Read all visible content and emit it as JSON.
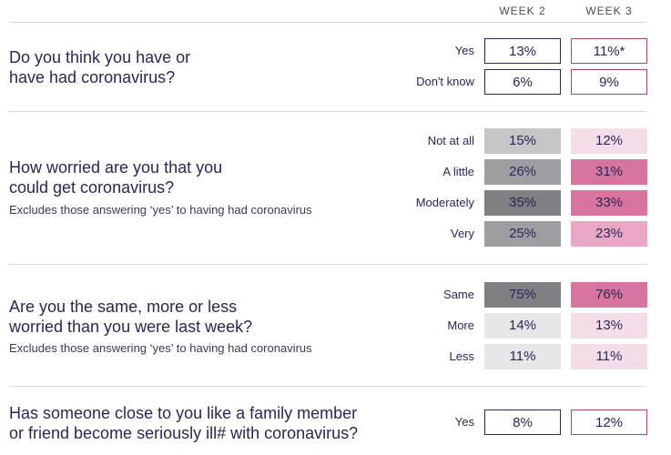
{
  "columns": [
    "WEEK 2",
    "WEEK 3"
  ],
  "colors": {
    "week2_outline": "#2a2757",
    "week3_outline": "#b0466f",
    "grey_light": "#e6e6e8",
    "grey_mid": "#c6c6c9",
    "grey_dark": "#9e9ea2",
    "grey_darker": "#7f7f84",
    "pink_light": "#f4dde8",
    "pink_mid": "#e9a7c4",
    "pink_strong": "#db86ac",
    "pink_dark": "#d7749f"
  },
  "questions": [
    {
      "lines": [
        "Do you think you have or",
        "have had coronavirus?"
      ],
      "note": "",
      "rows": [
        {
          "label": "Yes",
          "week2": "13%",
          "week3": "11%*",
          "style": "outline"
        },
        {
          "label": "Don't know",
          "week2": "6%",
          "week3": "9%",
          "style": "outline"
        }
      ]
    },
    {
      "lines": [
        "How worried are you that you",
        "could get coronavirus?"
      ],
      "note": "Excludes those answering ‘yes’ to having had coronavirus",
      "rows": [
        {
          "label": "Not at all",
          "week2": "15%",
          "week3": "12%",
          "style": "fill",
          "c2": "grey_mid",
          "c3": "pink_light"
        },
        {
          "label": "A little",
          "week2": "26%",
          "week3": "31%",
          "style": "fill",
          "c2": "grey_dark",
          "c3": "pink_dark"
        },
        {
          "label": "Moderately",
          "week2": "35%",
          "week3": "33%",
          "style": "fill",
          "c2": "grey_darker",
          "c3": "pink_dark"
        },
        {
          "label": "Very",
          "week2": "25%",
          "week3": "23%",
          "style": "fill",
          "c2": "grey_dark",
          "c3": "pink_mid"
        }
      ]
    },
    {
      "lines": [
        "Are you the same, more or less",
        "worried than you were last week?"
      ],
      "note": "Excludes those answering ‘yes’ to having had coronavirus",
      "rows": [
        {
          "label": "Same",
          "week2": "75%",
          "week3": "76%",
          "style": "fill",
          "c2": "grey_darker",
          "c3": "pink_dark"
        },
        {
          "label": "More",
          "week2": "14%",
          "week3": "13%",
          "style": "fill",
          "c2": "grey_light",
          "c3": "pink_light"
        },
        {
          "label": "Less",
          "week2": "11%",
          "week3": "11%",
          "style": "fill",
          "c2": "grey_light",
          "c3": "pink_light"
        }
      ]
    },
    {
      "lines": [
        "Has someone close to you like a family member",
        "or friend become seriously ill# with coronavirus?"
      ],
      "note": "",
      "rows": [
        {
          "label": "Yes",
          "week2": "8%",
          "week3": "12%",
          "style": "outline"
        }
      ]
    }
  ],
  "chart_data": {
    "type": "table",
    "columns": [
      "WEEK 2",
      "WEEK 3"
    ],
    "rows": [
      {
        "question": "Do you think you have or have had coronavirus?",
        "answer": "Yes",
        "week2": 13,
        "week3": 11,
        "week3_note": "*"
      },
      {
        "question": "Do you think you have or have had coronavirus?",
        "answer": "Don't know",
        "week2": 6,
        "week3": 9
      },
      {
        "question": "How worried are you that you could get coronavirus?",
        "answer": "Not at all",
        "week2": 15,
        "week3": 12
      },
      {
        "question": "How worried are you that you could get coronavirus?",
        "answer": "A little",
        "week2": 26,
        "week3": 31
      },
      {
        "question": "How worried are you that you could get coronavirus?",
        "answer": "Moderately",
        "week2": 35,
        "week3": 33
      },
      {
        "question": "How worried are you that you could get coronavirus?",
        "answer": "Very",
        "week2": 25,
        "week3": 23
      },
      {
        "question": "Are you the same, more or less worried than you were last week?",
        "answer": "Same",
        "week2": 75,
        "week3": 76
      },
      {
        "question": "Are you the same, more or less worried than you were last week?",
        "answer": "More",
        "week2": 14,
        "week3": 13
      },
      {
        "question": "Are you the same, more or less worried than you were last week?",
        "answer": "Less",
        "week2": 11,
        "week3": 11
      },
      {
        "question": "Has someone close to you like a family member or friend become seriously ill# with coronavirus?",
        "answer": "Yes",
        "week2": 8,
        "week3": 12
      }
    ]
  }
}
